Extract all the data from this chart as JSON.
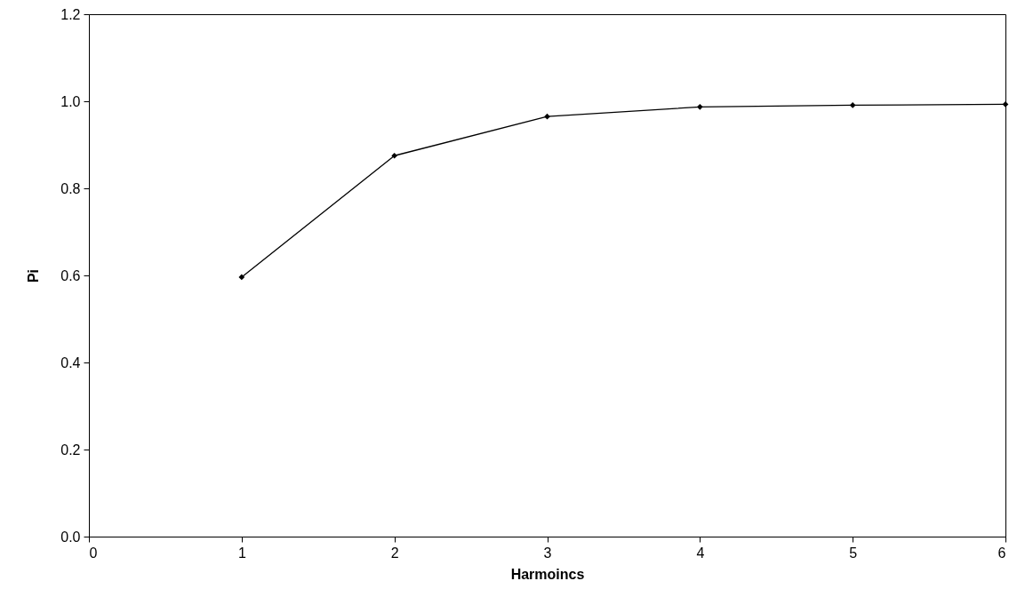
{
  "chart_data": {
    "type": "line",
    "xlabel": "Harmoincs",
    "ylabel": "Pi",
    "x": [
      1,
      2,
      3,
      4,
      5,
      6
    ],
    "series": [
      {
        "color": "#000000",
        "values": [
          0.596,
          0.875,
          0.965,
          0.987,
          0.991,
          0.993
        ]
      }
    ],
    "xlim": [
      0,
      6
    ],
    "xticks": [
      0,
      1,
      2,
      3,
      4,
      5,
      6
    ],
    "ylim": [
      0,
      1.2
    ],
    "yticks": [
      {
        "value": 0,
        "label": "0.0"
      },
      {
        "value": 0.2,
        "label": "0.2"
      },
      {
        "value": 0.4,
        "label": "0.4"
      },
      {
        "value": 0.6,
        "label": "0.6"
      },
      {
        "value": 0.8,
        "label": "0.8"
      },
      {
        "value": 1,
        "label": "1.0"
      },
      {
        "value": 1.2,
        "label": "1.2"
      }
    ],
    "grid": false,
    "marker": "diamond",
    "line_style": "solid"
  }
}
